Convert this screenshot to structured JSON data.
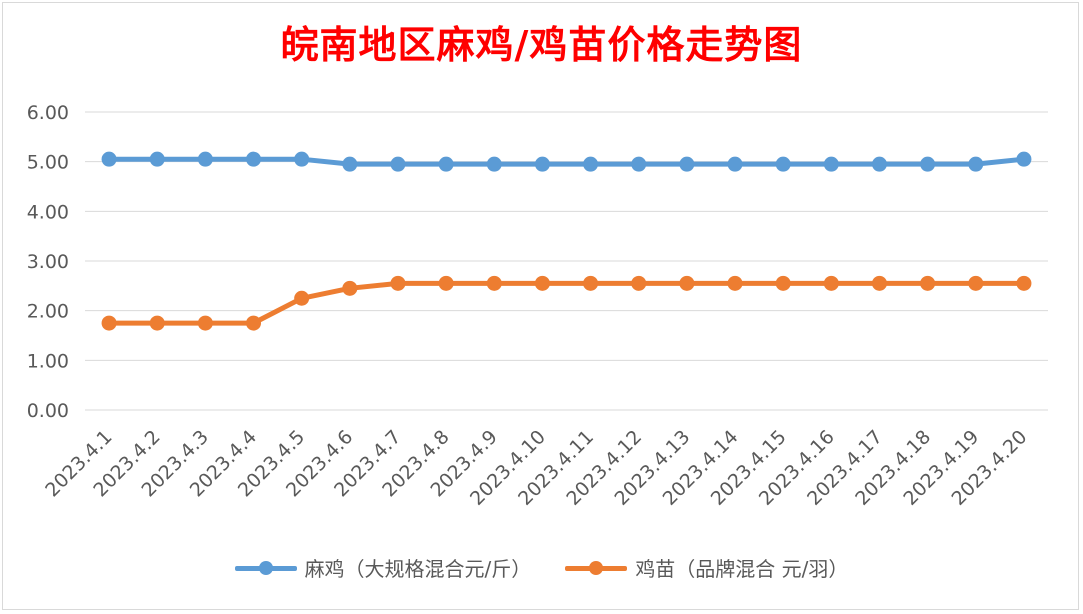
{
  "chart_data": {
    "type": "line",
    "title": "皖南地区麻鸡/鸡苗价格走势图",
    "categories": [
      "2023.4.1",
      "2023.4.2",
      "2023.4.3",
      "2023.4.4",
      "2023.4.5",
      "2023.4.6",
      "2023.4.7",
      "2023.4.8",
      "2023.4.9",
      "2023.4.10",
      "2023.4.11",
      "2023.4.12",
      "2023.4.13",
      "2023.4.14",
      "2023.4.15",
      "2023.4.16",
      "2023.4.17",
      "2023.4.18",
      "2023.4.19",
      "2023.4.20"
    ],
    "series": [
      {
        "name": "麻鸡（大规格混合元/斤）",
        "color": "#5b9bd5",
        "values": [
          5.05,
          5.05,
          5.05,
          5.05,
          5.05,
          4.95,
          4.95,
          4.95,
          4.95,
          4.95,
          4.95,
          4.95,
          4.95,
          4.95,
          4.95,
          4.95,
          4.95,
          4.95,
          4.95,
          5.05
        ]
      },
      {
        "name": "鸡苗（品牌混合 元/羽）",
        "color": "#ed7d31",
        "values": [
          1.75,
          1.75,
          1.75,
          1.75,
          2.25,
          2.45,
          2.55,
          2.55,
          2.55,
          2.55,
          2.55,
          2.55,
          2.55,
          2.55,
          2.55,
          2.55,
          2.55,
          2.55,
          2.55,
          2.55
        ]
      }
    ],
    "yticks": [
      "0.00",
      "1.00",
      "2.00",
      "3.00",
      "4.00",
      "5.00",
      "6.00"
    ],
    "ylim": [
      0,
      6
    ],
    "grid": true,
    "legend": "bottom"
  }
}
